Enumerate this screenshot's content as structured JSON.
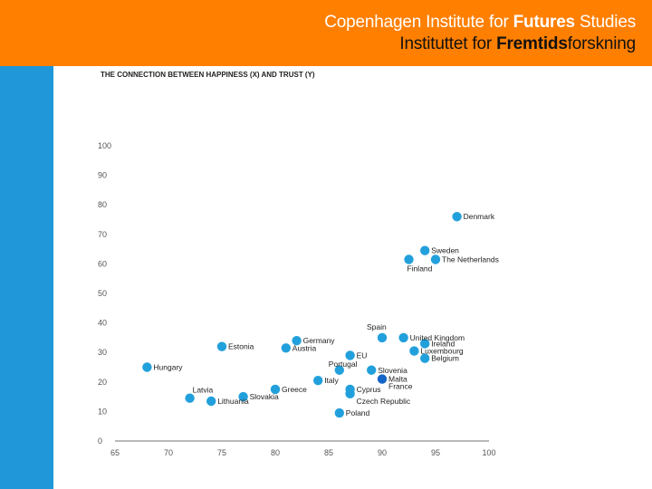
{
  "header": {
    "line1_regular": "Copenhagen Institute for ",
    "line1_bold": "Futures",
    "line1_tail": " Studies",
    "line2_regular": "Instituttet for ",
    "line2_bold": "Fremtids",
    "line2_tail": "forskning"
  },
  "colors": {
    "header_bg": "#ff7f00",
    "sidebar_bg": "#1f97d8",
    "point": "#22a0dc",
    "point_highlight": "#1565c8"
  },
  "chart_data": {
    "type": "scatter",
    "title": "THE CONNECTION BETWEEN HAPPINESS (X) AND TRUST (Y)",
    "xlabel": "",
    "ylabel": "",
    "xlim": [
      65,
      100
    ],
    "ylim": [
      0,
      100
    ],
    "xticks": [
      65,
      70,
      75,
      80,
      85,
      90,
      95,
      100
    ],
    "yticks": [
      0,
      10,
      20,
      30,
      40,
      50,
      60,
      70,
      80,
      90,
      100
    ],
    "grid": false,
    "points": [
      {
        "label": "Denmark",
        "x": 97,
        "y": 76,
        "anchor": "right"
      },
      {
        "label": "Sweden",
        "x": 94,
        "y": 64.5,
        "anchor": "right"
      },
      {
        "label": "The Netherlands",
        "x": 95,
        "y": 61.5,
        "anchor": "right"
      },
      {
        "label": "Finland",
        "x": 92.5,
        "y": 61.5,
        "anchor": "below"
      },
      {
        "label": "Spain",
        "x": 90,
        "y": 35,
        "anchor": "above"
      },
      {
        "label": "United Kingdom",
        "x": 92,
        "y": 35,
        "anchor": "right"
      },
      {
        "label": "Ireland",
        "x": 94,
        "y": 33,
        "anchor": "right"
      },
      {
        "label": "Luxembourg",
        "x": 93,
        "y": 30.5,
        "anchor": "right"
      },
      {
        "label": "Belgium",
        "x": 94,
        "y": 28,
        "anchor": "right"
      },
      {
        "label": "Germany",
        "x": 82,
        "y": 34,
        "anchor": "right"
      },
      {
        "label": "Austria",
        "x": 81,
        "y": 31.5,
        "anchor": "right"
      },
      {
        "label": "EU",
        "x": 87,
        "y": 29,
        "anchor": "right"
      },
      {
        "label": "Portugal",
        "x": 86,
        "y": 24,
        "anchor": "above"
      },
      {
        "label": "Slovenia",
        "x": 89,
        "y": 24,
        "anchor": "right"
      },
      {
        "label": "Malta",
        "x": 90,
        "y": 21,
        "anchor": "right"
      },
      {
        "label": "France",
        "x": 90,
        "y": 21,
        "anchor": "belowright"
      },
      {
        "label": "Estonia",
        "x": 75,
        "y": 32,
        "anchor": "right"
      },
      {
        "label": "Hungary",
        "x": 68,
        "y": 25,
        "anchor": "right"
      },
      {
        "label": "Italy",
        "x": 84,
        "y": 20.5,
        "anchor": "right"
      },
      {
        "label": "Greece",
        "x": 80,
        "y": 17.5,
        "anchor": "right"
      },
      {
        "label": "Cyprus",
        "x": 87,
        "y": 17.5,
        "anchor": "right"
      },
      {
        "label": "Czech Republic",
        "x": 87,
        "y": 16,
        "anchor": "belowright"
      },
      {
        "label": "Latvia",
        "x": 72,
        "y": 14.5,
        "anchor": "aboveright"
      },
      {
        "label": "Lithuania",
        "x": 74,
        "y": 13.5,
        "anchor": "right"
      },
      {
        "label": "Slovakia",
        "x": 77,
        "y": 15,
        "anchor": "right"
      },
      {
        "label": "Poland",
        "x": 86,
        "y": 9.5,
        "anchor": "right"
      }
    ]
  }
}
